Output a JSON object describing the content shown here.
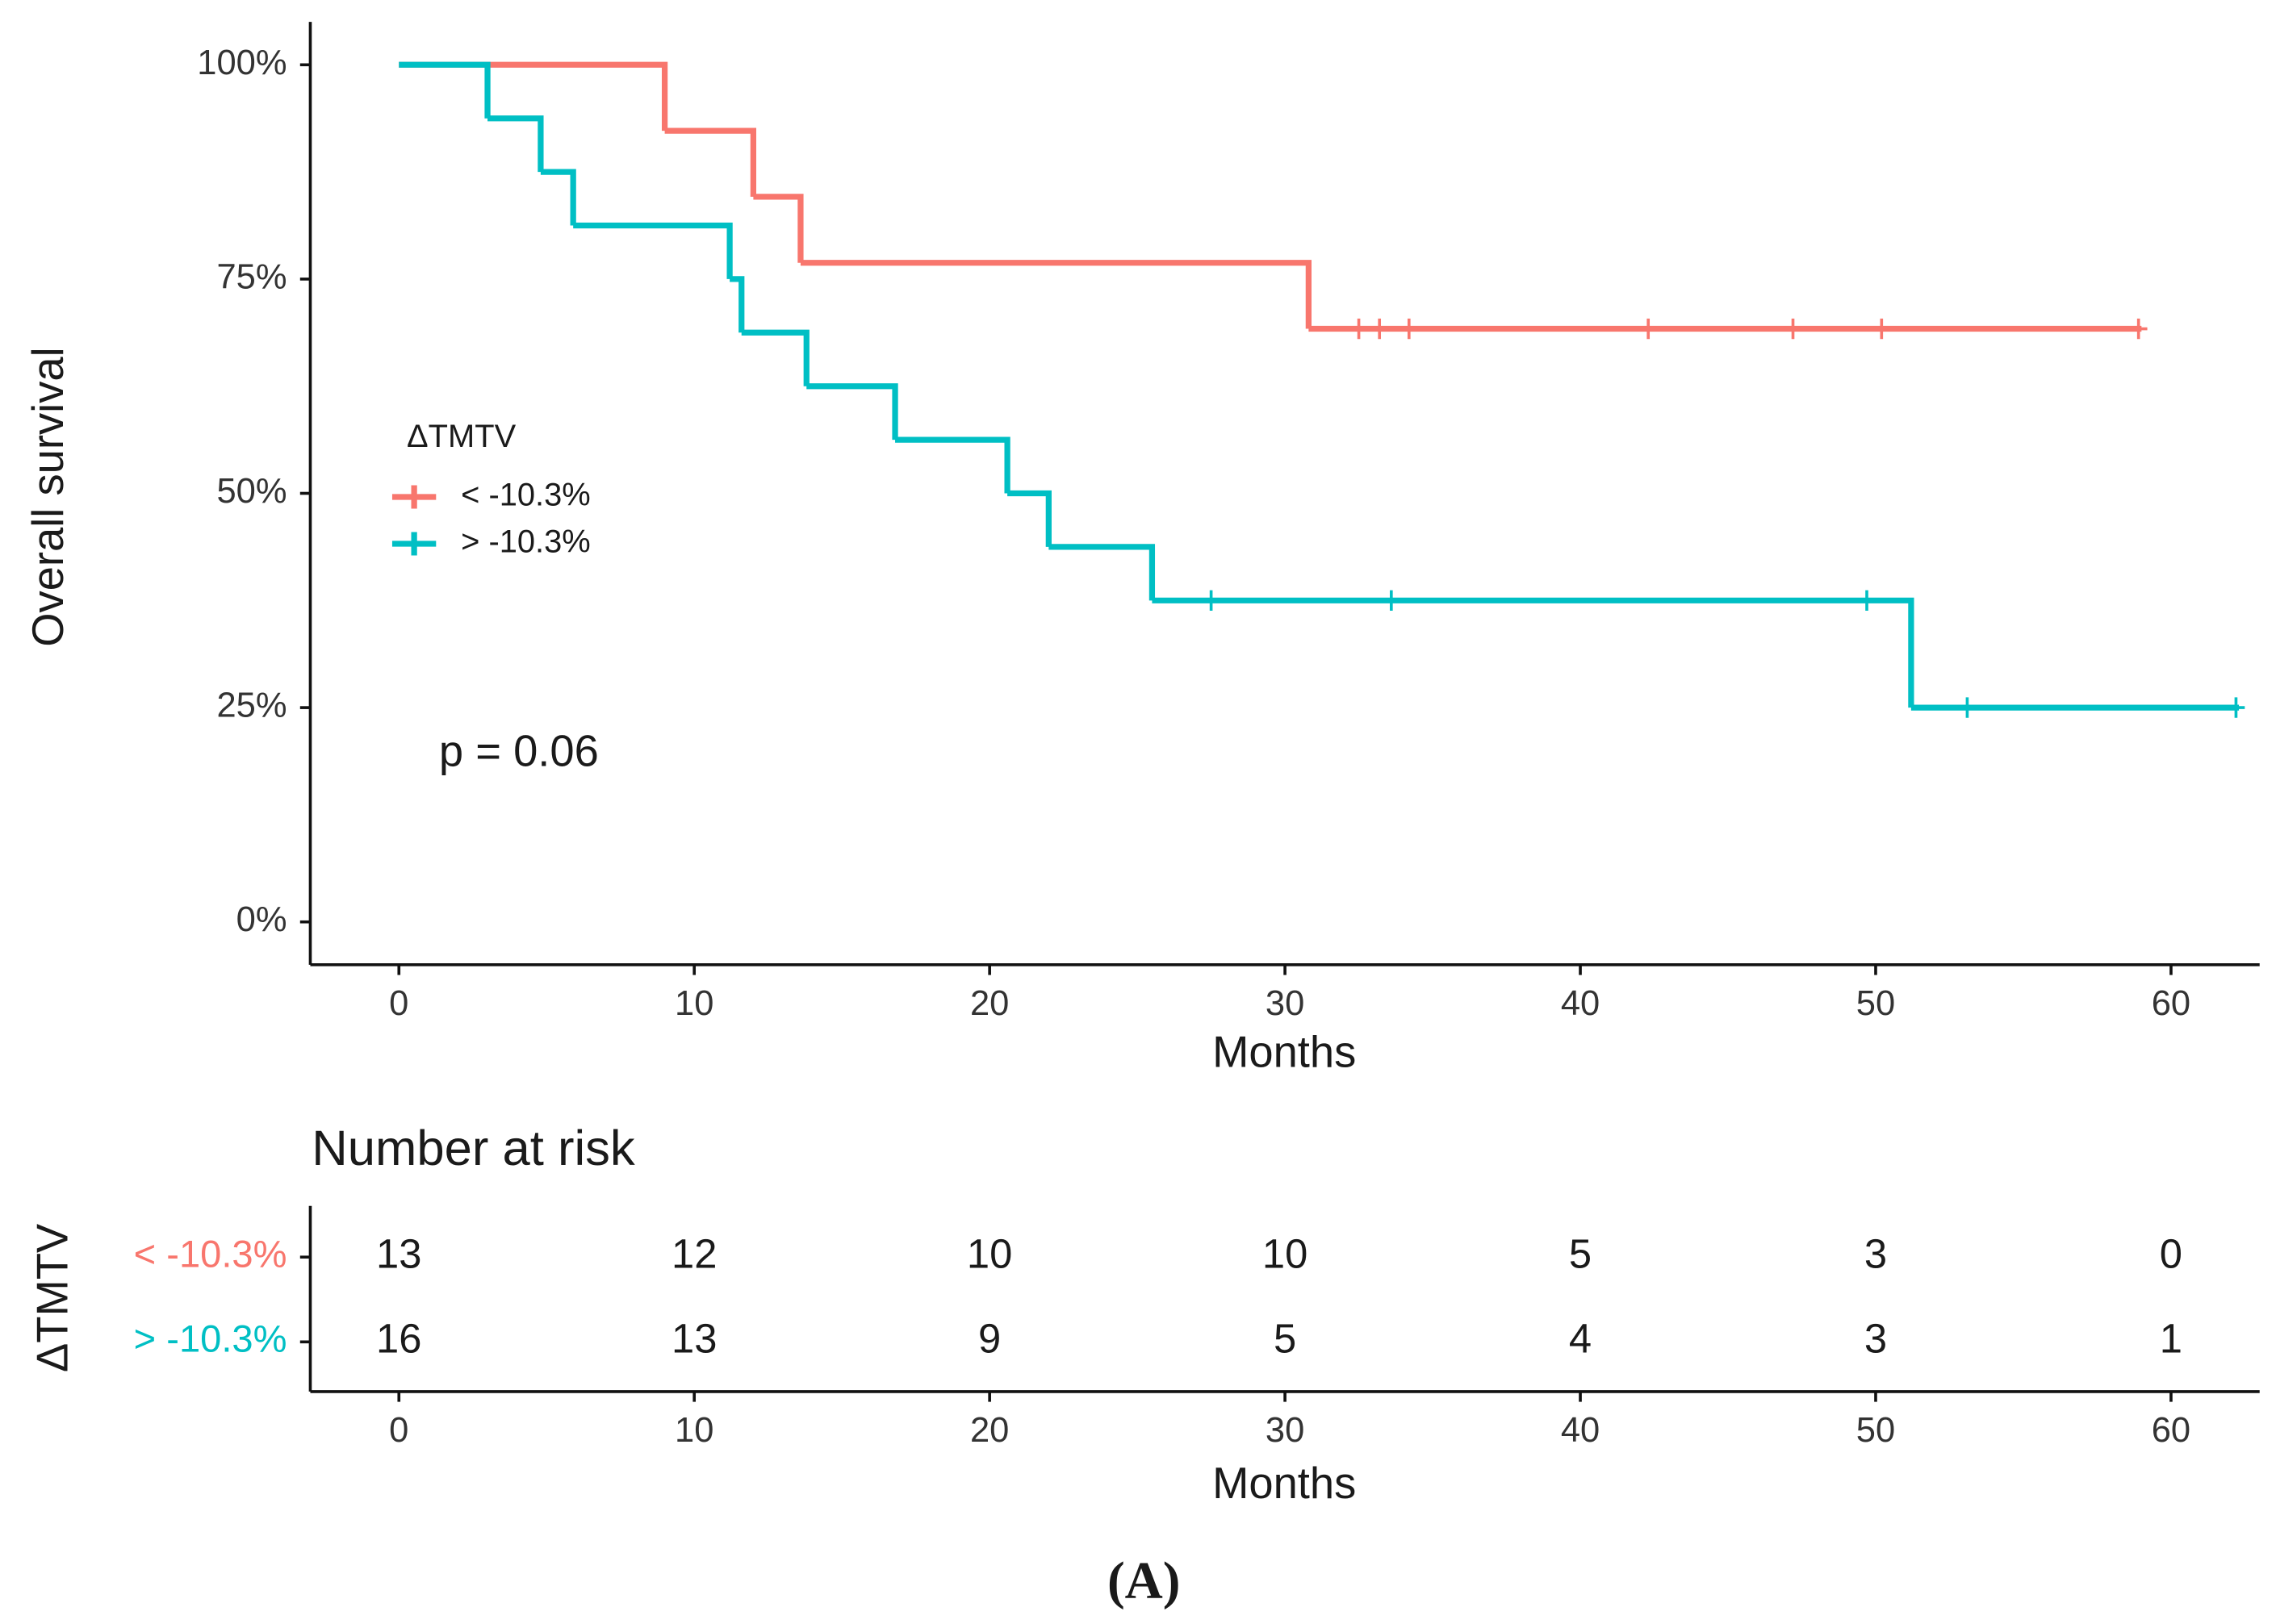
{
  "chart_data": [
    {
      "type": "step",
      "x_label": "Months",
      "y_label": "Overall survival",
      "legend_title": "ΔTMTV",
      "annotation": "p = 0.06",
      "xlim": [
        -3,
        63
      ],
      "ylim": [
        -5,
        105
      ],
      "xticks": [
        0,
        10,
        20,
        30,
        40,
        50,
        60
      ],
      "yticks": [
        {
          "value": 0,
          "label": "0%"
        },
        {
          "value": 25,
          "label": "25%"
        },
        {
          "value": 50,
          "label": "50%"
        },
        {
          "value": 75,
          "label": "75%"
        },
        {
          "value": 100,
          "label": "100%"
        }
      ],
      "series": [
        {
          "name": "< -10.3%",
          "color": "#f8766d",
          "x": [
            0,
            9,
            12,
            13.6,
            30.8,
            59
          ],
          "values": [
            100,
            92.3,
            84.6,
            76.9,
            69.2,
            69.2
          ],
          "censor_x": [
            32.5,
            33.2,
            34.2,
            42.3,
            47.2,
            50.2,
            58.9
          ],
          "censor_values": [
            69.2,
            69.2,
            69.2,
            69.2,
            69.2,
            69.2,
            69.2
          ]
        },
        {
          "name": "> -10.3%",
          "color": "#00bfc4",
          "x": [
            0,
            3,
            4.8,
            5.9,
            11.2,
            11.6,
            13.8,
            16.8,
            20.6,
            22,
            25.5,
            51.2,
            62.3
          ],
          "values": [
            100,
            93.75,
            87.5,
            81.25,
            75,
            68.75,
            62.5,
            56.25,
            50,
            43.75,
            37.5,
            25,
            25
          ],
          "censor_x": [
            27.5,
            33.6,
            49.7,
            53.1,
            62.2
          ],
          "censor_values": [
            37.5,
            37.5,
            37.5,
            25,
            25
          ]
        }
      ]
    },
    {
      "type": "risk_table",
      "title": "Number at risk",
      "x_label": "Months",
      "y_label": "ΔTMTV",
      "xlim": [
        -3,
        63
      ],
      "xticks": [
        0,
        10,
        20,
        30,
        40,
        50,
        60
      ],
      "rows": [
        {
          "name": "< -10.3%",
          "color": "#f8766d",
          "values": [
            13,
            12,
            10,
            10,
            5,
            3,
            0
          ]
        },
        {
          "name": "> -10.3%",
          "color": "#00bfc4",
          "values": [
            16,
            13,
            9,
            5,
            4,
            3,
            1
          ]
        }
      ]
    }
  ],
  "caption": "(A)"
}
